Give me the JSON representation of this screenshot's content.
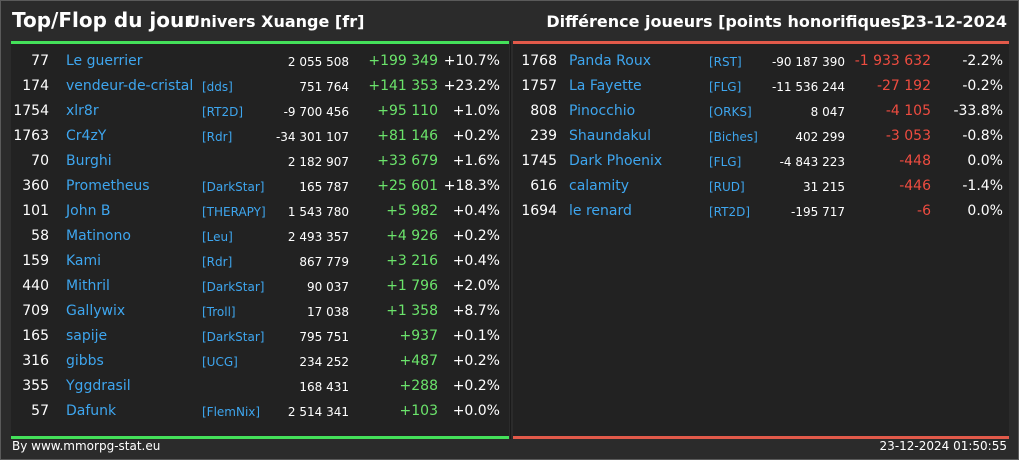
{
  "header": {
    "title": "Top/Flop du jour",
    "universe": "Univers Xuange [fr]",
    "metric": "Différence joueurs [points honorifiques]",
    "date": "23-12-2024"
  },
  "colors": {
    "top_accent": "#44e05a",
    "flop_accent": "#e25a4a",
    "name_link": "#3ea6ef",
    "positive": "#6be46b",
    "negative": "#ee4c40"
  },
  "top": [
    {
      "rank": "77",
      "name": "Le guerrier",
      "tag": "",
      "points": "2 055 508",
      "diff": "+199 349",
      "pct": "+10.7%"
    },
    {
      "rank": "174",
      "name": "vendeur-de-cristal",
      "tag": "[dds]",
      "points": "751 764",
      "diff": "+141 353",
      "pct": "+23.2%"
    },
    {
      "rank": "1754",
      "name": "xlr8r",
      "tag": "[RT2D]",
      "points": "-9 700 456",
      "diff": "+95 110",
      "pct": "+1.0%"
    },
    {
      "rank": "1763",
      "name": "Cr4zY",
      "tag": "[Rdr]",
      "points": "-34 301 107",
      "diff": "+81 146",
      "pct": "+0.2%"
    },
    {
      "rank": "70",
      "name": "Burghi",
      "tag": "",
      "points": "2 182 907",
      "diff": "+33 679",
      "pct": "+1.6%"
    },
    {
      "rank": "360",
      "name": "Prometheus",
      "tag": "[DarkStar]",
      "points": "165 787",
      "diff": "+25 601",
      "pct": "+18.3%"
    },
    {
      "rank": "101",
      "name": "John B",
      "tag": "[THERAPY]",
      "points": "1 543 780",
      "diff": "+5 982",
      "pct": "+0.4%"
    },
    {
      "rank": "58",
      "name": "Matinono",
      "tag": "[Leu]",
      "points": "2 493 357",
      "diff": "+4 926",
      "pct": "+0.2%"
    },
    {
      "rank": "159",
      "name": "Kami",
      "tag": "[Rdr]",
      "points": "867 779",
      "diff": "+3 216",
      "pct": "+0.4%"
    },
    {
      "rank": "440",
      "name": "Mithril",
      "tag": "[DarkStar]",
      "points": "90 037",
      "diff": "+1 796",
      "pct": "+2.0%"
    },
    {
      "rank": "709",
      "name": "Gallywix",
      "tag": "[Troll]",
      "points": "17 038",
      "diff": "+1 358",
      "pct": "+8.7%"
    },
    {
      "rank": "165",
      "name": "sapije",
      "tag": "[DarkStar]",
      "points": "795 751",
      "diff": "+937",
      "pct": "+0.1%"
    },
    {
      "rank": "316",
      "name": "gibbs",
      "tag": "[UCG]",
      "points": "234 252",
      "diff": "+487",
      "pct": "+0.2%"
    },
    {
      "rank": "355",
      "name": "Yggdrasil",
      "tag": "",
      "points": "168 431",
      "diff": "+288",
      "pct": "+0.2%"
    },
    {
      "rank": "57",
      "name": "Dafunk",
      "tag": "[FlemNix]",
      "points": "2 514 341",
      "diff": "+103",
      "pct": "+0.0%"
    }
  ],
  "flop": [
    {
      "rank": "1768",
      "name": "Panda Roux",
      "tag": "[RST]",
      "points": "-90 187 390",
      "diff": "-1 933 632",
      "pct": "-2.2%"
    },
    {
      "rank": "1757",
      "name": "La Fayette",
      "tag": "[FLG]",
      "points": "-11 536 244",
      "diff": "-27 192",
      "pct": "-0.2%"
    },
    {
      "rank": "808",
      "name": "Pinocchio",
      "tag": "[ORKS]",
      "points": "8 047",
      "diff": "-4 105",
      "pct": "-33.8%"
    },
    {
      "rank": "239",
      "name": "Shaundakul",
      "tag": "[Biches]",
      "points": "402 299",
      "diff": "-3 053",
      "pct": "-0.8%"
    },
    {
      "rank": "1745",
      "name": "Dark Phoenix",
      "tag": "[FLG]",
      "points": "-4 843 223",
      "diff": "-448",
      "pct": "0.0%"
    },
    {
      "rank": "616",
      "name": "calamity",
      "tag": "[RUD]",
      "points": "31 215",
      "diff": "-446",
      "pct": "-1.4%"
    },
    {
      "rank": "1694",
      "name": "le renard",
      "tag": "[RT2D]",
      "points": "-195 717",
      "diff": "-6",
      "pct": "0.0%"
    }
  ],
  "footer": {
    "credit": "By www.mmorpg-stat.eu",
    "timestamp": "23-12-2024 01:50:55"
  }
}
